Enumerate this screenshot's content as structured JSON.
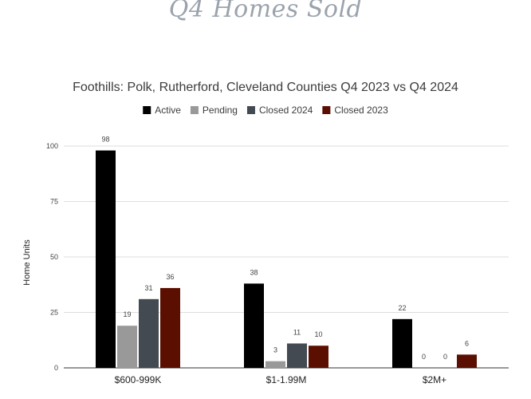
{
  "heading": "Q4 Homes Sold",
  "chart_data": {
    "type": "bar",
    "title": "Foothills: Polk, Rutherford, Cleveland Counties Q4 2023 vs Q4 2024",
    "xlabel": "",
    "ylabel": "Home Units",
    "ylim": [
      0,
      100
    ],
    "yticks": [
      0,
      25,
      50,
      75,
      100
    ],
    "grid": true,
    "legend_position": "top",
    "categories": [
      "$600-999K",
      "$1-1.99M",
      "$2M+"
    ],
    "series": [
      {
        "name": "Active",
        "color": "#000000",
        "values": [
          98,
          38,
          22
        ]
      },
      {
        "name": "Pending",
        "color": "#999999",
        "values": [
          19,
          3,
          0
        ]
      },
      {
        "name": "Closed 2024",
        "color": "#434a52",
        "values": [
          31,
          11,
          0
        ]
      },
      {
        "name": "Closed 2023",
        "color": "#5b0f00",
        "values": [
          36,
          10,
          6
        ]
      }
    ]
  }
}
